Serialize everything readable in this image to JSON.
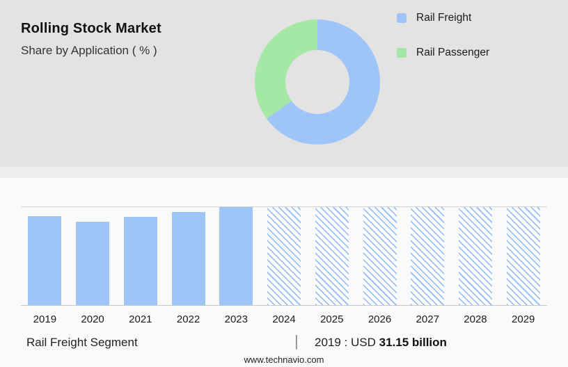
{
  "header": {
    "title": "Rolling Stock Market",
    "subtitle": "Share by Application ( % )"
  },
  "legend": {
    "items": [
      {
        "label": "Rail Freight",
        "color": "#9fc5f8"
      },
      {
        "label": "Rail Passenger",
        "color": "#a5e7a4"
      }
    ]
  },
  "footer": {
    "segment_label": "Rail Freight Segment",
    "separator": "|",
    "value_prefix": "2019 : USD",
    "value_bold": "31.15 billion",
    "website": "www.technavio.com"
  },
  "chart_data": [
    {
      "type": "pie",
      "title": "Rolling Stock Market — Share by Application ( % )",
      "labels": [
        "Rail Freight",
        "Rail Passenger"
      ],
      "values": [
        65,
        35
      ],
      "colors": [
        "#9fc5f8",
        "#a5e7a4"
      ],
      "donut": true,
      "legend_position": "right"
    },
    {
      "type": "bar",
      "categories": [
        "2019",
        "2020",
        "2021",
        "2022",
        "2023",
        "2024",
        "2025",
        "2026",
        "2027",
        "2028",
        "2029"
      ],
      "values": [
        0.91,
        0.85,
        0.9,
        0.95,
        1.0,
        1.0,
        1.0,
        1.0,
        1.0,
        1.0,
        1.0
      ],
      "hatched": [
        false,
        false,
        false,
        false,
        false,
        true,
        true,
        true,
        true,
        true,
        true
      ],
      "forecast_from": "2024",
      "anchor": {
        "year": "2019",
        "value_usd_billion": 31.15
      },
      "bar_color": "#9fc5f8",
      "ylim": [
        0,
        1
      ],
      "xlabel": "",
      "ylabel": "",
      "grid": false,
      "note": "values are relative bar heights; no numeric y-axis shown"
    }
  ]
}
